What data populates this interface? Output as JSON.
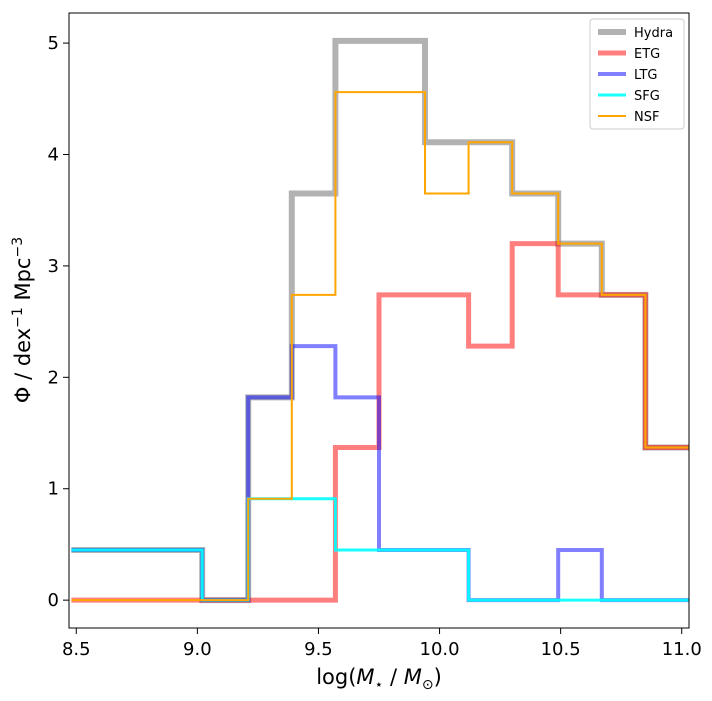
{
  "chart_data": {
    "type": "line",
    "step": true,
    "xlabel": "log(M⋆ / M⊙)",
    "ylabel": "Φ / dex⁻¹ Mpc⁻³",
    "xlim": [
      8.47,
      11.03
    ],
    "ylim": [
      -0.25,
      5.27
    ],
    "xticks": [
      8.5,
      9.0,
      9.5,
      10.0,
      10.5,
      11.0
    ],
    "xtick_labels": [
      "8.5",
      "9.0",
      "9.5",
      "10.0",
      "10.5",
      "11.0"
    ],
    "yticks": [
      0,
      1,
      2,
      3,
      4,
      5
    ],
    "ytick_labels": [
      "0",
      "1",
      "2",
      "3",
      "4",
      "5"
    ],
    "bin_edges": [
      8.48,
      9.02,
      9.21,
      9.39,
      9.57,
      9.75,
      9.94,
      10.12,
      10.3,
      10.49,
      10.67,
      10.85,
      11.03
    ],
    "legend_position": "upper right",
    "series": [
      {
        "name": "Hydra",
        "color": "#aaaaaa",
        "width": 6,
        "opacity": 0.9,
        "values": [
          0.45,
          0.0,
          1.82,
          3.65,
          5.02,
          5.02,
          4.11,
          4.11,
          3.65,
          3.2,
          2.74,
          1.37
        ]
      },
      {
        "name": "ETG",
        "color": "#ff0000",
        "width": 5,
        "opacity": 0.5,
        "values": [
          0.0,
          0.0,
          0.0,
          0.0,
          1.37,
          2.74,
          2.74,
          2.28,
          3.2,
          2.74,
          2.74,
          1.37
        ]
      },
      {
        "name": "LTG",
        "color": "#0000ff",
        "width": 4,
        "opacity": 0.5,
        "values": [
          0.45,
          0.0,
          1.82,
          2.28,
          1.82,
          0.45,
          0.45,
          0.0,
          0.0,
          0.45,
          0.0,
          0.0
        ]
      },
      {
        "name": "SFG",
        "color": "#00ffff",
        "width": 3,
        "opacity": 0.9,
        "values": [
          0.45,
          0.0,
          0.91,
          0.91,
          0.45,
          0.45,
          0.45,
          0.0,
          0.0,
          0.0,
          0.0,
          0.0
        ]
      },
      {
        "name": "NSF",
        "color": "#ffa500",
        "width": 2,
        "opacity": 1.0,
        "values": [
          0.0,
          0.0,
          0.91,
          2.74,
          4.56,
          4.56,
          3.65,
          4.11,
          3.65,
          3.2,
          2.74,
          1.37
        ]
      }
    ]
  }
}
